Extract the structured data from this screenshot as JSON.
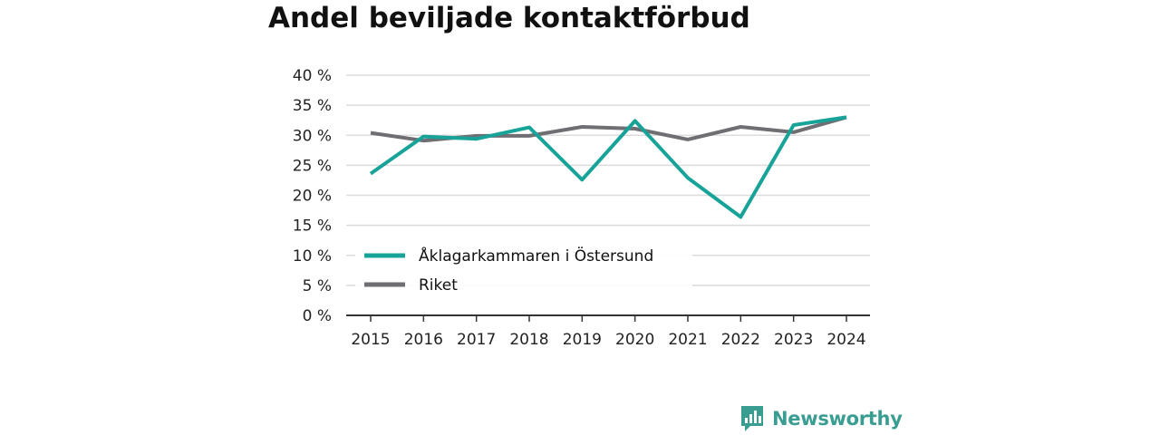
{
  "chart_data": {
    "type": "line",
    "title": "Andel beviljade kontaktförbud",
    "xlabel": "",
    "ylabel": "",
    "x": [
      "2015",
      "2016",
      "2017",
      "2018",
      "2019",
      "2020",
      "2021",
      "2022",
      "2023",
      "2024"
    ],
    "ylim": [
      0,
      40
    ],
    "yticks": [
      0,
      5,
      10,
      15,
      20,
      25,
      30,
      35,
      40
    ],
    "ytick_labels": [
      "0 %",
      "5 %",
      "10 %",
      "15 %",
      "20 %",
      "25 %",
      "30 %",
      "35 %",
      "40 %"
    ],
    "grid": true,
    "legend_position": "bottom-left",
    "series": [
      {
        "name": "Åklagarkammaren i Östersund",
        "color": "#17a398",
        "values": [
          23.6,
          29.8,
          29.4,
          31.3,
          22.6,
          32.4,
          22.9,
          16.4,
          31.7,
          33.0
        ]
      },
      {
        "name": "Riket",
        "color": "#6e6e73",
        "values": [
          30.4,
          29.1,
          29.9,
          29.9,
          31.4,
          31.1,
          29.3,
          31.4,
          30.5,
          33.0
        ]
      }
    ]
  },
  "brand": {
    "name": "Newsworthy",
    "icon": "bar-chart-speech-icon",
    "color": "#3a9d92"
  }
}
